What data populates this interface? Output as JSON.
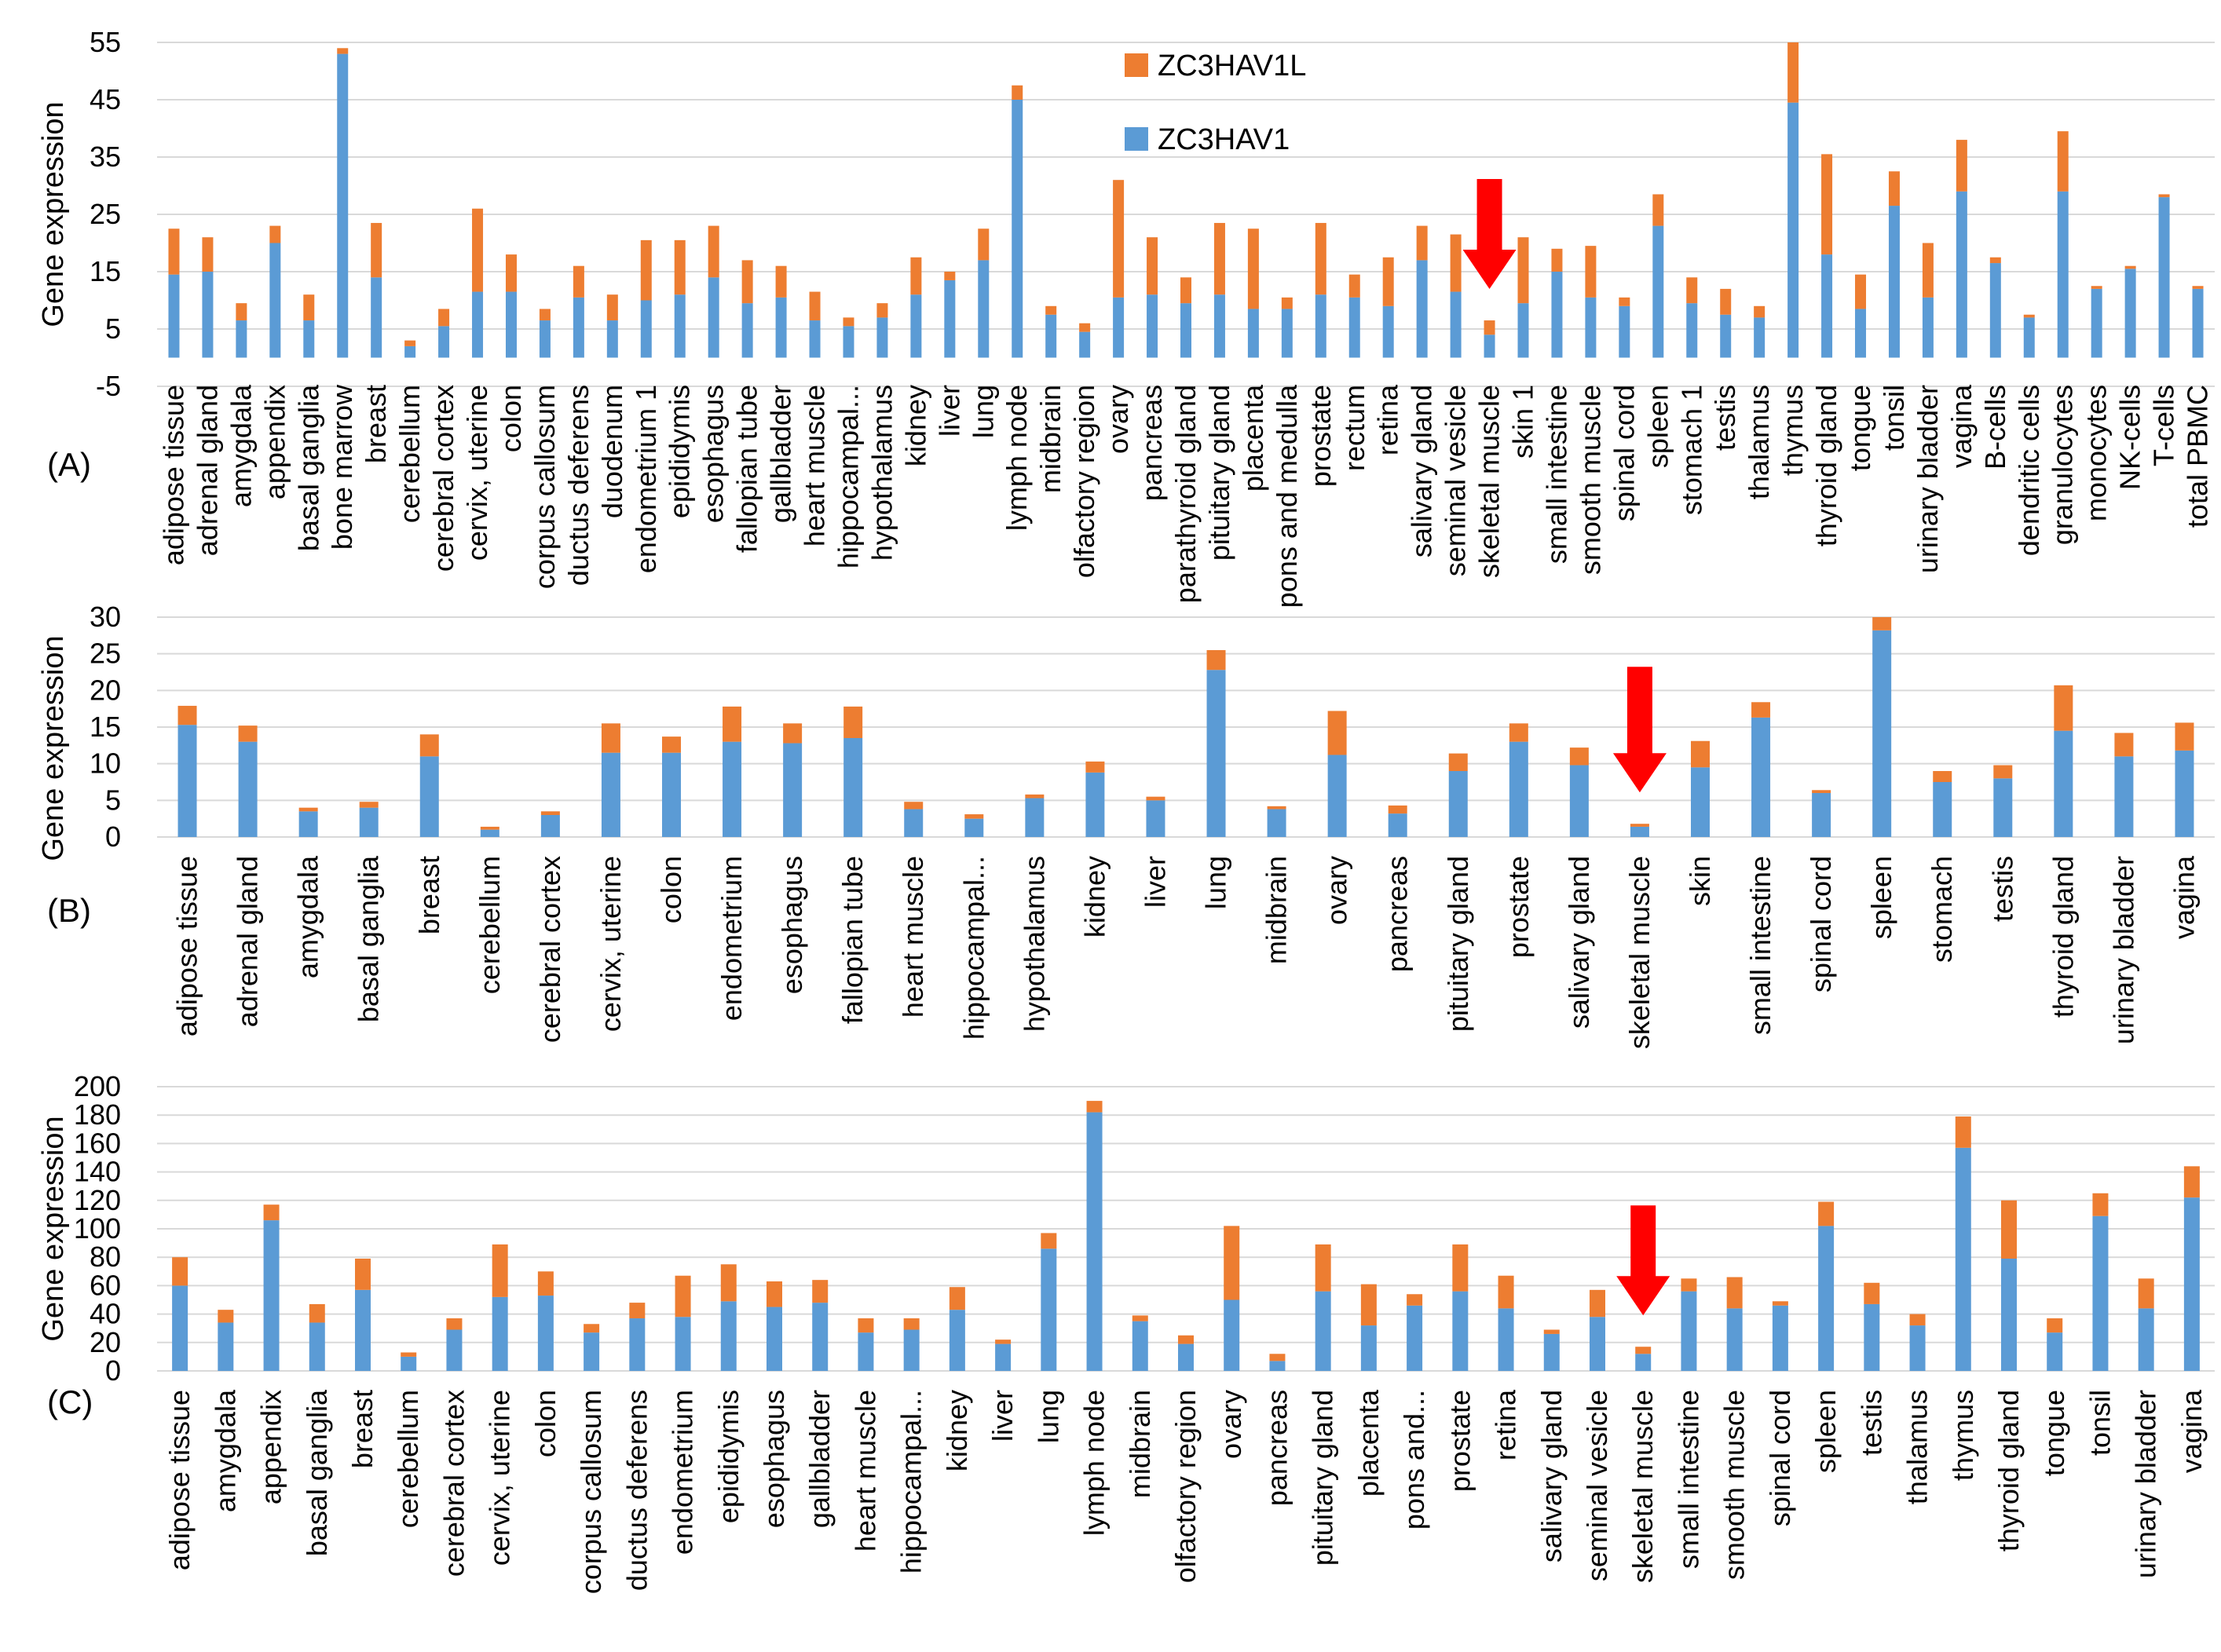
{
  "series_names": [
    "ZC3HAV1L",
    "ZC3HAV1"
  ],
  "colors": {
    "ZC3HAV1": "#5B9BD5",
    "ZC3HAV1L": "#ED7D31",
    "arrow": "#FF0000",
    "grid": "#D9D9D9"
  },
  "chart_data": [
    {
      "type": "bar",
      "stacked": true,
      "panel": "(A)",
      "ylabel": "Gene expression",
      "ylim": [
        -5,
        55
      ],
      "yticks": [
        -5,
        5,
        15,
        25,
        35,
        45,
        55
      ],
      "grid": true,
      "legend": [
        "ZC3HAV1L",
        "ZC3HAV1"
      ],
      "arrow_at": "skeletal muscle",
      "categories": [
        "adipose tissue",
        "adrenal gland",
        "amygdala",
        "appendix",
        "basal ganglia",
        "bone marrow",
        "breast",
        "cerebellum",
        "cerebral cortex",
        "cervix, uterine",
        "colon",
        "corpus callosum",
        "ductus deferens",
        "duodenum",
        "endometrium 1",
        "epididymis",
        "esophagus",
        "fallopian tube",
        "gallbladder",
        "heart muscle",
        "hippocampal...",
        "hypothalamus",
        "kidney",
        "liver",
        "lung",
        "lymph node",
        "midbrain",
        "olfactory region",
        "ovary",
        "pancreas",
        "parathyroid gland",
        "pituitary gland",
        "placenta",
        "pons and medulla",
        "prostate",
        "rectum",
        "retina",
        "salivary gland",
        "seminal vesicle",
        "skeletal muscle",
        "skin 1",
        "small intestine",
        "smooth muscle",
        "spinal cord",
        "spleen",
        "stomach 1",
        "testis",
        "thalamus",
        "thymus",
        "thyroid gland",
        "tongue",
        "tonsil",
        "urinary bladder",
        "vagina",
        "B-cells",
        "dendritic cells",
        "granulocytes",
        "monocytes",
        "NK-cells",
        "T-cells",
        "total PBMC"
      ],
      "series": [
        {
          "name": "ZC3HAV1",
          "values": [
            14.5,
            15,
            6.5,
            20,
            6.5,
            53,
            14,
            2,
            5.5,
            11.5,
            11.5,
            6.5,
            10.5,
            6.5,
            10,
            11,
            14,
            9.5,
            10.5,
            6.5,
            5.5,
            7,
            11,
            13.5,
            17,
            45,
            7.5,
            4.5,
            10.5,
            11,
            9.5,
            11,
            8.5,
            8.5,
            11,
            10.5,
            9,
            17,
            11.5,
            4,
            9.5,
            15,
            10.5,
            9,
            23,
            9.5,
            7.5,
            7,
            44.5,
            18,
            8.5,
            26.5,
            10.5,
            29,
            16.5,
            7,
            29,
            12,
            15.5,
            28,
            12
          ]
        },
        {
          "name": "ZC3HAV1L",
          "values": [
            8,
            6,
            3,
            3,
            4.5,
            1,
            9.5,
            1,
            3,
            14.5,
            6.5,
            2,
            5.5,
            4.5,
            10.5,
            9.5,
            9,
            7.5,
            5.5,
            5,
            1.5,
            2.5,
            6.5,
            1.5,
            5.5,
            2.5,
            1.5,
            1.5,
            20.5,
            10,
            4.5,
            12.5,
            14,
            2,
            12.5,
            4,
            8.5,
            6,
            10,
            2.5,
            11.5,
            4,
            9,
            1.5,
            5.5,
            4.5,
            4.5,
            2,
            10.5,
            17.5,
            6,
            6,
            9.5,
            9,
            1,
            0.5,
            10.5,
            0.5,
            0.5,
            0.5,
            0.5
          ]
        }
      ]
    },
    {
      "type": "bar",
      "stacked": true,
      "panel": "(B)",
      "ylabel": "Gene expression",
      "ylim": [
        0,
        30
      ],
      "yticks": [
        0,
        5,
        10,
        15,
        20,
        25,
        30
      ],
      "grid": true,
      "arrow_at": "skeletal muscle",
      "categories": [
        "adipose tissue",
        "adrenal gland",
        "amygdala",
        "basal ganglia",
        "breast",
        "cerebellum",
        "cerebral cortex",
        "cervix, uterine",
        "colon",
        "endometrium",
        "esophagus",
        "fallopian tube",
        "heart muscle",
        "hippocampal...",
        "hypothalamus",
        "kidney",
        "liver",
        "lung",
        "midbrain",
        "ovary",
        "pancreas",
        "pituitary gland",
        "prostate",
        "salivary gland",
        "skeletal muscle",
        "skin",
        "small intestine",
        "spinal cord",
        "spleen",
        "stomach",
        "testis",
        "thyroid gland",
        "urinary bladder",
        "vagina"
      ],
      "series": [
        {
          "name": "ZC3HAV1",
          "values": [
            15.3,
            13,
            3.5,
            4,
            11,
            1,
            3,
            11.5,
            11.5,
            13,
            12.8,
            13.5,
            3.8,
            2.5,
            5.3,
            8.8,
            5,
            22.8,
            3.8,
            11.2,
            3.2,
            9,
            13,
            9.8,
            1.4,
            9.5,
            16.3,
            6,
            28.2,
            7.5,
            8,
            14.5,
            11,
            11.8
          ]
        },
        {
          "name": "ZC3HAV1L",
          "values": [
            2.6,
            2.2,
            0.5,
            0.8,
            3,
            0.4,
            0.5,
            4,
            2.2,
            4.8,
            2.7,
            4.3,
            1,
            0.6,
            0.5,
            1.5,
            0.5,
            2.7,
            0.4,
            6,
            1.1,
            2.4,
            2.5,
            2.4,
            0.4,
            3.6,
            2.1,
            0.4,
            1.8,
            1.5,
            1.8,
            6.2,
            3.2,
            3.8
          ]
        }
      ]
    },
    {
      "type": "bar",
      "stacked": true,
      "panel": "(C)",
      "ylabel": "Gene expression",
      "ylim": [
        0,
        200
      ],
      "yticks": [
        0,
        20,
        40,
        60,
        80,
        100,
        120,
        140,
        160,
        180,
        200
      ],
      "grid": true,
      "arrow_at": "skeletal muscle",
      "categories": [
        "adipose tissue",
        "amygdala",
        "appendix",
        "basal ganglia",
        "breast",
        "cerebellum",
        "cerebral cortex",
        "cervix, uterine",
        "colon",
        "corpus callosum",
        "ductus deferens",
        "endometrium",
        "epididymis",
        "esophagus",
        "gallbladder",
        "heart muscle",
        "hippocampal...",
        "kidney",
        "liver",
        "lung",
        "lymph node",
        "midbrain",
        "olfactory region",
        "ovary",
        "pancreas",
        "pituitary gland",
        "placenta",
        "pons and...",
        "prostate",
        "retina",
        "salivary gland",
        "seminal vesicle",
        "skeletal muscle",
        "small intestine",
        "smooth muscle",
        "spinal cord",
        "spleen",
        "testis",
        "thalamus",
        "thymus",
        "thyroid gland",
        "tongue",
        "tonsil",
        "urinary bladder",
        "vagina"
      ],
      "series": [
        {
          "name": "ZC3HAV1",
          "values": [
            60,
            34,
            106,
            34,
            57,
            10,
            29,
            52,
            53,
            27,
            37,
            38,
            49,
            45,
            48,
            27,
            29,
            43,
            19,
            86,
            182,
            35,
            19,
            50,
            7,
            56,
            32,
            46,
            56,
            44,
            26,
            38,
            12,
            56,
            44,
            46,
            102,
            47,
            32,
            157,
            79,
            27,
            109,
            44,
            122
          ]
        },
        {
          "name": "ZC3HAV1L",
          "values": [
            20,
            9,
            11,
            13,
            22,
            3,
            8,
            37,
            17,
            6,
            11,
            29,
            26,
            18,
            16,
            10,
            8,
            16,
            3,
            11,
            8,
            4,
            6,
            52,
            5,
            33,
            29,
            8,
            33,
            23,
            3,
            19,
            5,
            9,
            22,
            3,
            17,
            15,
            8,
            22,
            41,
            10,
            16,
            21,
            22
          ]
        }
      ]
    }
  ]
}
